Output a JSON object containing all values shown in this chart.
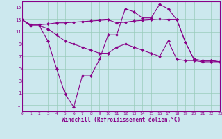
{
  "xlabel": "Windchill (Refroidissement éolien,°C)",
  "background_color": "#cce8ee",
  "line_color": "#880088",
  "xmin": 0,
  "xmax": 23,
  "ymin": -2,
  "ymax": 16,
  "yticks": [
    -1,
    1,
    3,
    5,
    7,
    9,
    11,
    13,
    15
  ],
  "xticks": [
    0,
    1,
    2,
    3,
    4,
    5,
    6,
    7,
    8,
    9,
    10,
    11,
    12,
    13,
    14,
    15,
    16,
    17,
    18,
    19,
    20,
    21,
    22,
    23
  ],
  "line1_x": [
    0,
    1,
    2,
    3,
    4,
    5,
    6,
    7,
    8,
    9,
    10,
    11,
    12,
    13,
    14,
    15,
    16,
    17,
    18,
    19,
    20,
    21,
    22,
    23
  ],
  "line1_y": [
    13,
    12,
    12,
    9.5,
    5.0,
    0.8,
    -1.3,
    3.8,
    3.8,
    6.5,
    10.5,
    10.5,
    14.8,
    14.3,
    13.3,
    13.3,
    15.5,
    14.8,
    13.0,
    9.3,
    6.5,
    6.3,
    6.3,
    6.1
  ],
  "line2_x": [
    0,
    1,
    2,
    3,
    4,
    5,
    6,
    7,
    8,
    9,
    10,
    11,
    12,
    13,
    14,
    15,
    16,
    17,
    18,
    19,
    20,
    21,
    22,
    23
  ],
  "line2_y": [
    13,
    12.2,
    12.2,
    12.3,
    12.5,
    12.5,
    12.6,
    12.7,
    12.8,
    12.9,
    13.0,
    12.5,
    12.6,
    12.8,
    12.9,
    13.0,
    13.1,
    13.0,
    13.0,
    9.3,
    6.5,
    6.3,
    6.3,
    6.1
  ],
  "line3_x": [
    0,
    1,
    2,
    3,
    4,
    5,
    6,
    7,
    8,
    9,
    10,
    11,
    12,
    13,
    14,
    15,
    16,
    17,
    18,
    19,
    20,
    21,
    22,
    23
  ],
  "line3_y": [
    13,
    12.0,
    12.0,
    11.5,
    10.5,
    9.5,
    9.0,
    8.5,
    8.0,
    7.5,
    7.5,
    8.5,
    9.0,
    8.5,
    8.0,
    7.5,
    7.0,
    9.5,
    6.5,
    6.3,
    6.3,
    6.1,
    6.1,
    6.1
  ]
}
